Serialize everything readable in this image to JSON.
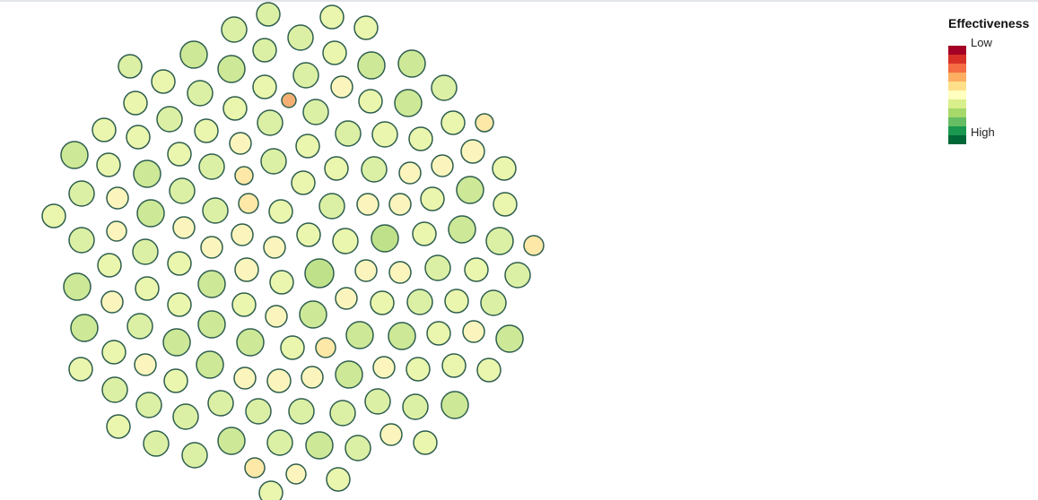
{
  "chart_data": {
    "type": "scatter",
    "title": "",
    "xlabel": "",
    "ylabel": "",
    "legend": {
      "title": "Effectiveness",
      "low_label": "Low",
      "high_label": "High",
      "placement": "top-right",
      "colors": [
        "#a50026",
        "#d73027",
        "#f46d43",
        "#fdae61",
        "#fee08b",
        "#ffffbf",
        "#d9ef8b",
        "#a6d96a",
        "#66bd63",
        "#1a9850",
        "#006837"
      ]
    },
    "stroke_color": "#2e5e4e",
    "bubble_levels": [
      "#fee8a8",
      "#fbf5bd",
      "#eaf6ad",
      "#dcf0a5",
      "#cde897",
      "#bfe18a",
      "#f4b074"
    ],
    "bubbles": [
      [
        299,
        16,
        13,
        3
      ],
      [
        261,
        33,
        14,
        3
      ],
      [
        370,
        19,
        13,
        2
      ],
      [
        408,
        31,
        13,
        2
      ],
      [
        216,
        61,
        15,
        4
      ],
      [
        145,
        74,
        13,
        3
      ],
      [
        295,
        56,
        13,
        3
      ],
      [
        335,
        42,
        14,
        3
      ],
      [
        373,
        59,
        13,
        2
      ],
      [
        414,
        73,
        15,
        4
      ],
      [
        459,
        71,
        15,
        4
      ],
      [
        258,
        77,
        15,
        4
      ],
      [
        182,
        91,
        13,
        2
      ],
      [
        223,
        104,
        14,
        3
      ],
      [
        295,
        97,
        13,
        2
      ],
      [
        341,
        84,
        14,
        3
      ],
      [
        381,
        97,
        12,
        1
      ],
      [
        322,
        112,
        8,
        6
      ],
      [
        495,
        98,
        14,
        3
      ],
      [
        151,
        115,
        13,
        2
      ],
      [
        262,
        121,
        13,
        2
      ],
      [
        413,
        113,
        13,
        2
      ],
      [
        455,
        115,
        15,
        4
      ],
      [
        189,
        133,
        14,
        3
      ],
      [
        230,
        146,
        13,
        2
      ],
      [
        301,
        137,
        14,
        3
      ],
      [
        352,
        125,
        14,
        3
      ],
      [
        116,
        145,
        13,
        2
      ],
      [
        154,
        153,
        13,
        2
      ],
      [
        268,
        160,
        12,
        1
      ],
      [
        388,
        149,
        14,
        3
      ],
      [
        429,
        150,
        14,
        2
      ],
      [
        469,
        155,
        13,
        2
      ],
      [
        505,
        137,
        13,
        2
      ],
      [
        540,
        137,
        10,
        0
      ],
      [
        83,
        173,
        15,
        4
      ],
      [
        200,
        172,
        13,
        2
      ],
      [
        343,
        163,
        13,
        2
      ],
      [
        527,
        169,
        13,
        1
      ],
      [
        121,
        184,
        13,
        2
      ],
      [
        164,
        194,
        15,
        4
      ],
      [
        236,
        186,
        14,
        3
      ],
      [
        272,
        196,
        10,
        0
      ],
      [
        305,
        180,
        14,
        3
      ],
      [
        375,
        188,
        13,
        2
      ],
      [
        417,
        189,
        14,
        3
      ],
      [
        457,
        193,
        12,
        1
      ],
      [
        493,
        185,
        12,
        1
      ],
      [
        562,
        188,
        13,
        2
      ],
      [
        91,
        216,
        14,
        3
      ],
      [
        131,
        221,
        12,
        1
      ],
      [
        203,
        213,
        14,
        3
      ],
      [
        338,
        204,
        13,
        2
      ],
      [
        524,
        212,
        15,
        4
      ],
      [
        277,
        227,
        11,
        0
      ],
      [
        60,
        241,
        13,
        2
      ],
      [
        168,
        238,
        15,
        4
      ],
      [
        240,
        235,
        14,
        3
      ],
      [
        313,
        236,
        13,
        2
      ],
      [
        370,
        230,
        14,
        3
      ],
      [
        410,
        228,
        12,
        1
      ],
      [
        446,
        228,
        12,
        1
      ],
      [
        482,
        222,
        13,
        2
      ],
      [
        563,
        228,
        13,
        2
      ],
      [
        91,
        268,
        14,
        3
      ],
      [
        130,
        258,
        11,
        1
      ],
      [
        205,
        254,
        12,
        1
      ],
      [
        270,
        262,
        12,
        1
      ],
      [
        306,
        276,
        12,
        1
      ],
      [
        344,
        262,
        13,
        2
      ],
      [
        385,
        269,
        14,
        2
      ],
      [
        429,
        266,
        15,
        5
      ],
      [
        473,
        261,
        13,
        2
      ],
      [
        515,
        256,
        15,
        4
      ],
      [
        557,
        269,
        15,
        3
      ],
      [
        595,
        274,
        11,
        0
      ],
      [
        122,
        296,
        13,
        2
      ],
      [
        162,
        281,
        14,
        3
      ],
      [
        200,
        294,
        13,
        2
      ],
      [
        236,
        276,
        12,
        1
      ],
      [
        275,
        301,
        13,
        1
      ],
      [
        408,
        302,
        12,
        1
      ],
      [
        446,
        304,
        12,
        1
      ],
      [
        488,
        299,
        14,
        3
      ],
      [
        531,
        301,
        13,
        2
      ],
      [
        577,
        307,
        14,
        3
      ],
      [
        86,
        320,
        15,
        4
      ],
      [
        164,
        322,
        13,
        2
      ],
      [
        236,
        317,
        15,
        4
      ],
      [
        314,
        315,
        13,
        2
      ],
      [
        356,
        305,
        16,
        5
      ],
      [
        125,
        337,
        12,
        1
      ],
      [
        200,
        340,
        13,
        2
      ],
      [
        272,
        340,
        13,
        2
      ],
      [
        386,
        333,
        12,
        1
      ],
      [
        426,
        338,
        13,
        2
      ],
      [
        468,
        337,
        14,
        3
      ],
      [
        509,
        336,
        13,
        2
      ],
      [
        550,
        338,
        14,
        3
      ],
      [
        94,
        366,
        15,
        4
      ],
      [
        156,
        364,
        14,
        3
      ],
      [
        236,
        362,
        15,
        4
      ],
      [
        308,
        353,
        12,
        1
      ],
      [
        349,
        351,
        15,
        4
      ],
      [
        401,
        374,
        15,
        4
      ],
      [
        448,
        375,
        15,
        4
      ],
      [
        489,
        372,
        13,
        2
      ],
      [
        528,
        370,
        12,
        1
      ],
      [
        568,
        378,
        15,
        4
      ],
      [
        127,
        393,
        13,
        2
      ],
      [
        197,
        382,
        15,
        4
      ],
      [
        279,
        382,
        15,
        4
      ],
      [
        326,
        388,
        13,
        2
      ],
      [
        363,
        388,
        11,
        0
      ],
      [
        162,
        407,
        12,
        1
      ],
      [
        234,
        407,
        15,
        4
      ],
      [
        90,
        412,
        13,
        2
      ],
      [
        196,
        425,
        13,
        2
      ],
      [
        273,
        422,
        12,
        1
      ],
      [
        311,
        425,
        13,
        1
      ],
      [
        348,
        421,
        12,
        1
      ],
      [
        389,
        418,
        15,
        4
      ],
      [
        428,
        410,
        12,
        1
      ],
      [
        466,
        412,
        13,
        2
      ],
      [
        506,
        408,
        13,
        2
      ],
      [
        545,
        413,
        13,
        2
      ],
      [
        128,
        435,
        14,
        3
      ],
      [
        166,
        452,
        14,
        3
      ],
      [
        207,
        465,
        14,
        3
      ],
      [
        246,
        450,
        14,
        3
      ],
      [
        288,
        459,
        14,
        3
      ],
      [
        336,
        459,
        14,
        3
      ],
      [
        382,
        461,
        14,
        3
      ],
      [
        421,
        448,
        14,
        3
      ],
      [
        463,
        454,
        14,
        3
      ],
      [
        507,
        452,
        15,
        4
      ],
      [
        132,
        476,
        13,
        2
      ],
      [
        174,
        495,
        14,
        3
      ],
      [
        217,
        508,
        14,
        3
      ],
      [
        258,
        492,
        15,
        4
      ],
      [
        312,
        494,
        14,
        3
      ],
      [
        356,
        497,
        15,
        4
      ],
      [
        399,
        500,
        14,
        3
      ],
      [
        436,
        485,
        12,
        1
      ],
      [
        474,
        494,
        13,
        2
      ],
      [
        284,
        522,
        11,
        0
      ],
      [
        330,
        529,
        11,
        1
      ],
      [
        377,
        535,
        13,
        2
      ],
      [
        302,
        550,
        13,
        2
      ]
    ]
  }
}
